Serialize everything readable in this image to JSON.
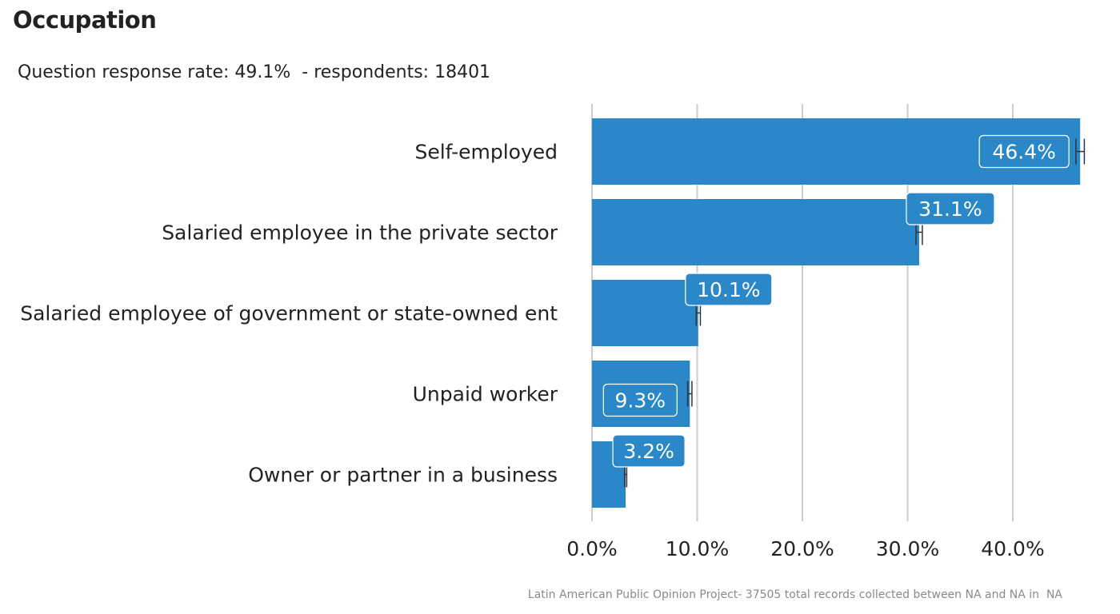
{
  "chart_data": {
    "type": "bar",
    "orientation": "horizontal",
    "title": "Occupation",
    "subtitle": "Question response rate: 49.1%  - respondents: 18401",
    "caption": "Latin American Public Opinion Project- 37505 total records collected between NA and NA in  NA",
    "categories": [
      "Self-employed",
      "Salaried employee in the private sector",
      "Salaried employee of government or state-owned ent",
      "Unpaid worker",
      "Owner or partner in a business"
    ],
    "values": [
      46.4,
      31.1,
      10.1,
      9.3,
      3.2
    ],
    "value_labels": [
      "46.4%",
      "31.1%",
      "10.1%",
      "9.3%",
      "3.2%"
    ],
    "error_bars": [
      [
        46.0,
        46.8
      ],
      [
        30.8,
        31.4
      ],
      [
        9.9,
        10.3
      ],
      [
        9.1,
        9.5
      ],
      [
        3.1,
        3.3
      ]
    ],
    "xlim": [
      0,
      47
    ],
    "xticks": [
      0,
      10,
      20,
      30,
      40
    ],
    "xtick_labels": [
      "0.0%",
      "10.0%",
      "20.0%",
      "30.0%",
      "40.0%"
    ],
    "xlabel": "",
    "ylabel": "",
    "grid": "vertical",
    "legend": "none",
    "colors": {
      "bar": "#2b88c8",
      "grid": "#cccccc",
      "error_bar": "#333333",
      "label_text": "#ffffff",
      "label_border": "#ffffff"
    }
  }
}
